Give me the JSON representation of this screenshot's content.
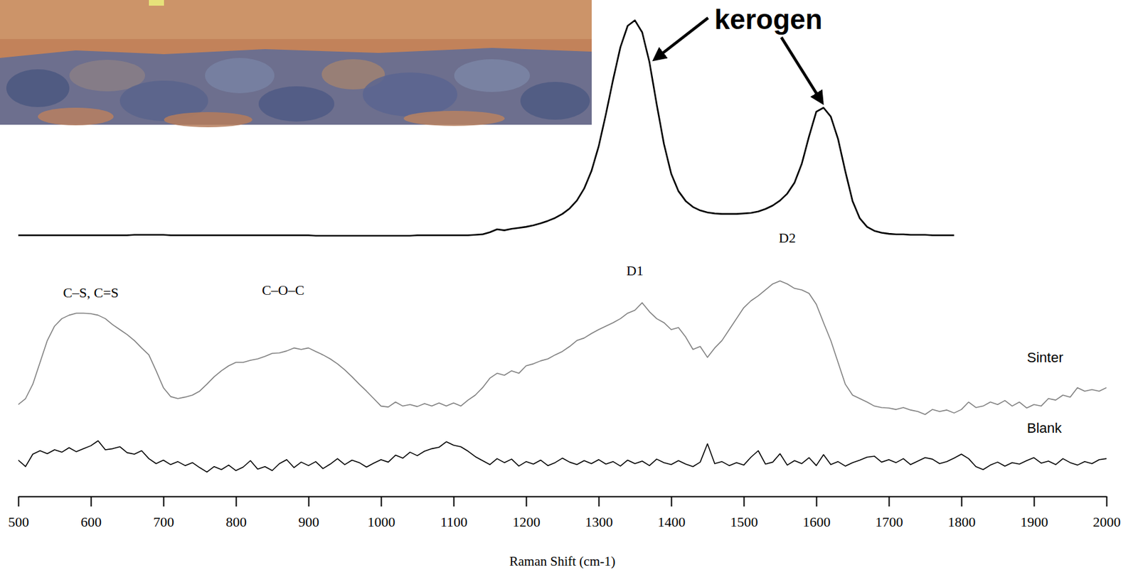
{
  "chart_data": {
    "type": "line",
    "xlabel": "Raman Shift (cm-1)",
    "xlim": [
      500,
      2000
    ],
    "xticks": [
      500,
      600,
      700,
      800,
      900,
      1000,
      1100,
      1200,
      1300,
      1400,
      1500,
      1600,
      1700,
      1800,
      1900,
      2000
    ],
    "ylim": [
      0,
      100
    ],
    "tick_labels": "x",
    "x": [
      500,
      510,
      520,
      530,
      540,
      550,
      560,
      570,
      580,
      590,
      600,
      610,
      620,
      630,
      640,
      650,
      660,
      670,
      680,
      690,
      700,
      710,
      720,
      730,
      740,
      750,
      760,
      770,
      780,
      790,
      800,
      810,
      820,
      830,
      840,
      850,
      860,
      870,
      880,
      890,
      900,
      910,
      920,
      930,
      940,
      950,
      960,
      970,
      980,
      990,
      1000,
      1010,
      1020,
      1030,
      1040,
      1050,
      1060,
      1070,
      1080,
      1090,
      1100,
      1110,
      1120,
      1130,
      1140,
      1150,
      1160,
      1170,
      1180,
      1190,
      1200,
      1210,
      1220,
      1230,
      1240,
      1250,
      1260,
      1270,
      1280,
      1290,
      1300,
      1310,
      1320,
      1330,
      1340,
      1350,
      1360,
      1370,
      1380,
      1390,
      1400,
      1410,
      1420,
      1430,
      1440,
      1450,
      1460,
      1470,
      1480,
      1490,
      1500,
      1510,
      1520,
      1530,
      1540,
      1550,
      1560,
      1570,
      1580,
      1590,
      1600,
      1610,
      1620,
      1630,
      1640,
      1650,
      1660,
      1670,
      1680,
      1690,
      1700,
      1710,
      1720,
      1730,
      1740,
      1750,
      1760,
      1770,
      1780,
      1790,
      1800,
      1810,
      1820,
      1830,
      1840,
      1850,
      1860,
      1870,
      1880,
      1890,
      1900,
      1910,
      1920,
      1930,
      1940,
      1950,
      1960,
      1970,
      1980,
      1990,
      2000
    ],
    "series": [
      {
        "name": "kerogen",
        "color": "#000000",
        "values": [
          52.6,
          52.6,
          52.6,
          52.6,
          52.6,
          52.6,
          52.6,
          52.6,
          52.6,
          52.6,
          52.6,
          52.6,
          52.6,
          52.6,
          52.6,
          52.6,
          52.7,
          52.7,
          52.7,
          52.7,
          52.7,
          52.6,
          52.6,
          52.6,
          52.6,
          52.6,
          52.6,
          52.6,
          52.6,
          52.6,
          52.6,
          52.6,
          52.6,
          52.6,
          52.6,
          52.6,
          52.6,
          52.6,
          52.6,
          52.6,
          52.6,
          52.5,
          52.5,
          52.5,
          52.5,
          52.5,
          52.5,
          52.5,
          52.5,
          52.5,
          52.5,
          52.5,
          52.5,
          52.5,
          52.5,
          52.6,
          52.6,
          52.6,
          52.6,
          52.6,
          52.6,
          52.6,
          52.6,
          52.7,
          52.8,
          53.2,
          53.8,
          53.6,
          53.9,
          54.1,
          54.3,
          54.6,
          55.0,
          55.5,
          56.1,
          56.9,
          58.0,
          59.6,
          62.0,
          65.5,
          70.5,
          77.0,
          84.0,
          90.5,
          94.8,
          95.9,
          93.5,
          87.5,
          79.0,
          71.0,
          65.0,
          61.5,
          59.5,
          58.3,
          57.6,
          57.2,
          57.0,
          56.9,
          56.9,
          56.9,
          57.0,
          57.1,
          57.4,
          57.9,
          58.6,
          59.6,
          61.0,
          63.2,
          67.0,
          72.5,
          77.5,
          78.3,
          76.5,
          72.0,
          65.5,
          59.5,
          56.0,
          54.3,
          53.5,
          53.1,
          52.9,
          52.8,
          52.8,
          52.7,
          52.7,
          52.7,
          52.6,
          52.6,
          52.6,
          52.6,
          null,
          null,
          null,
          null,
          null,
          null,
          null,
          null,
          null,
          null,
          null,
          null,
          null,
          null,
          null,
          null,
          null,
          null,
          null,
          null,
          null
        ]
      },
      {
        "name": "Sinter",
        "color": "#808080",
        "values": [
          18.5,
          19.7,
          22.6,
          27.0,
          31.4,
          34.3,
          35.8,
          36.5,
          36.9,
          36.9,
          36.8,
          36.5,
          35.8,
          34.6,
          33.6,
          32.6,
          31.4,
          29.9,
          28.5,
          25.3,
          21.9,
          20.1,
          19.7,
          20.0,
          20.4,
          21.2,
          22.6,
          24.1,
          25.3,
          26.3,
          27.0,
          27.0,
          27.4,
          27.7,
          28.2,
          28.8,
          28.9,
          29.3,
          29.9,
          29.6,
          29.9,
          29.2,
          28.5,
          27.7,
          26.7,
          25.5,
          24.1,
          22.6,
          21.2,
          19.7,
          18.2,
          18.0,
          19.0,
          18.2,
          18.5,
          18.1,
          18.7,
          18.2,
          18.8,
          18.2,
          18.8,
          18.2,
          19.4,
          20.4,
          21.9,
          23.8,
          24.8,
          24.4,
          25.3,
          24.8,
          26.3,
          26.7,
          27.3,
          27.7,
          28.5,
          29.2,
          30.2,
          31.4,
          31.9,
          32.8,
          33.6,
          34.3,
          35.0,
          35.8,
          36.9,
          37.5,
          39.0,
          37.2,
          35.8,
          35.0,
          33.6,
          34.0,
          32.1,
          29.6,
          30.2,
          28.0,
          29.9,
          31.4,
          33.6,
          35.8,
          38.0,
          39.4,
          40.4,
          41.6,
          42.8,
          43.4,
          42.8,
          41.9,
          41.6,
          40.9,
          38.7,
          35.0,
          31.4,
          27.0,
          22.6,
          20.4,
          19.7,
          19.0,
          18.2,
          17.9,
          17.8,
          17.5,
          17.9,
          17.4,
          17.1,
          16.5,
          17.5,
          17.1,
          17.4,
          16.8,
          17.5,
          19.0,
          17.9,
          18.2,
          19.0,
          18.5,
          19.3,
          18.2,
          19.0,
          17.8,
          18.5,
          18.2,
          19.7,
          19.4,
          20.4,
          20.0,
          21.9,
          21.2,
          21.5,
          21.2,
          21.9
        ]
      },
      {
        "name": "Blank",
        "color": "#000000",
        "values": [
          7.3,
          6.0,
          8.5,
          9.2,
          8.6,
          9.4,
          8.9,
          9.8,
          9.0,
          9.6,
          10.2,
          11.2,
          9.4,
          9.6,
          10.0,
          8.8,
          8.5,
          9.2,
          7.6,
          6.6,
          7.3,
          6.4,
          7.0,
          6.2,
          6.8,
          5.8,
          4.9,
          6.0,
          5.4,
          6.3,
          5.2,
          5.9,
          7.2,
          5.5,
          6.0,
          5.2,
          6.6,
          7.4,
          5.8,
          6.9,
          6.2,
          7.0,
          5.6,
          6.5,
          7.6,
          6.4,
          7.3,
          6.8,
          5.9,
          6.7,
          7.4,
          6.9,
          8.3,
          7.7,
          8.9,
          8.2,
          9.1,
          9.6,
          9.9,
          11.0,
          10.3,
          10.0,
          9.1,
          8.0,
          7.2,
          6.4,
          7.6,
          6.8,
          7.5,
          6.1,
          7.0,
          6.5,
          7.3,
          6.2,
          6.8,
          7.7,
          6.9,
          6.4,
          7.2,
          6.6,
          7.4,
          6.5,
          7.0,
          6.1,
          7.3,
          6.6,
          7.1,
          6.2,
          7.5,
          6.8,
          6.4,
          7.2,
          6.5,
          6.0,
          6.9,
          10.6,
          6.6,
          7.0,
          6.2,
          6.8,
          6.3,
          7.9,
          9.2,
          6.5,
          6.9,
          8.6,
          6.3,
          7.2,
          6.6,
          7.8,
          6.2,
          8.4,
          6.4,
          7.0,
          6.1,
          6.8,
          7.3,
          7.9,
          8.1,
          6.9,
          7.4,
          6.8,
          7.6,
          6.4,
          7.1,
          7.8,
          7.5,
          6.6,
          7.0,
          7.7,
          8.5,
          7.6,
          6.0,
          5.4,
          6.3,
          6.9,
          6.1,
          6.8,
          6.5,
          7.2,
          7.8,
          6.7,
          7.1,
          6.4,
          7.6,
          6.8,
          6.3,
          7.0,
          6.6,
          7.4,
          7.6
        ]
      }
    ],
    "annotations": [
      {
        "text": "C–S, C=S",
        "x": 600,
        "y": 40.1
      },
      {
        "text": "C–O–C",
        "x": 865,
        "y": 40.6
      },
      {
        "text": "D1",
        "x": 1350,
        "y": 44.5
      },
      {
        "text": "D2",
        "x": 1560,
        "y": 51.1
      }
    ]
  }
}
